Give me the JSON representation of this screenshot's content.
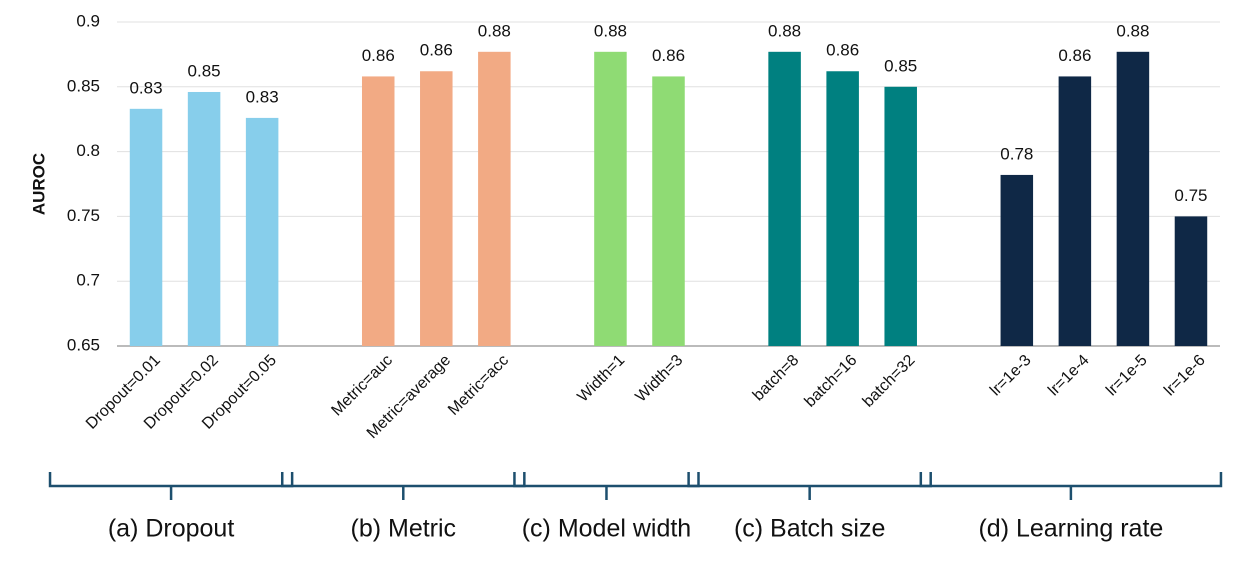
{
  "chart_data": {
    "type": "bar",
    "y_label": "AUROC",
    "categories": [
      "Dropout=0.01",
      "Dropout=0.02",
      "Dropout=0.05",
      null,
      "Metric=auc",
      "Metric=average",
      "Metric=acc",
      null,
      "Width=1",
      "Width=3",
      null,
      "batch=8",
      "batch=16",
      "batch=32",
      null,
      "lr=1e-3",
      "lr=1e-4",
      "lr=1e-5",
      "lr=1e-6"
    ],
    "values": [
      0.833,
      0.846,
      0.826,
      null,
      0.858,
      0.862,
      0.877,
      null,
      0.877,
      0.858,
      null,
      0.877,
      0.862,
      0.85,
      null,
      0.782,
      0.858,
      0.877,
      0.75
    ],
    "value_labels": [
      "0.83",
      "0.85",
      "0.83",
      null,
      "0.86",
      "0.86",
      "0.88",
      null,
      "0.88",
      "0.86",
      null,
      "0.88",
      "0.86",
      "0.85",
      null,
      "0.78",
      "0.86",
      "0.88",
      "0.75"
    ],
    "colors": [
      "#87ceeb",
      "#87ceeb",
      "#87ceeb",
      null,
      "#f2aa84",
      "#f2aa84",
      "#f2aa84",
      null,
      "#8fdb74",
      "#8fdb74",
      null,
      "#008080",
      "#008080",
      "#008080",
      null,
      "#0f2846",
      "#0f2846",
      "#0f2846",
      "#0f2846"
    ],
    "groups": [
      "(a) Dropout",
      "(b) Metric",
      "(c) Model width",
      "(c) Batch size",
      "(d) Learning rate"
    ],
    "ylim": [
      0.65,
      0.9
    ],
    "yticks": [
      0.65,
      0.7,
      0.75,
      0.8,
      0.85,
      0.9
    ],
    "grid": true
  }
}
